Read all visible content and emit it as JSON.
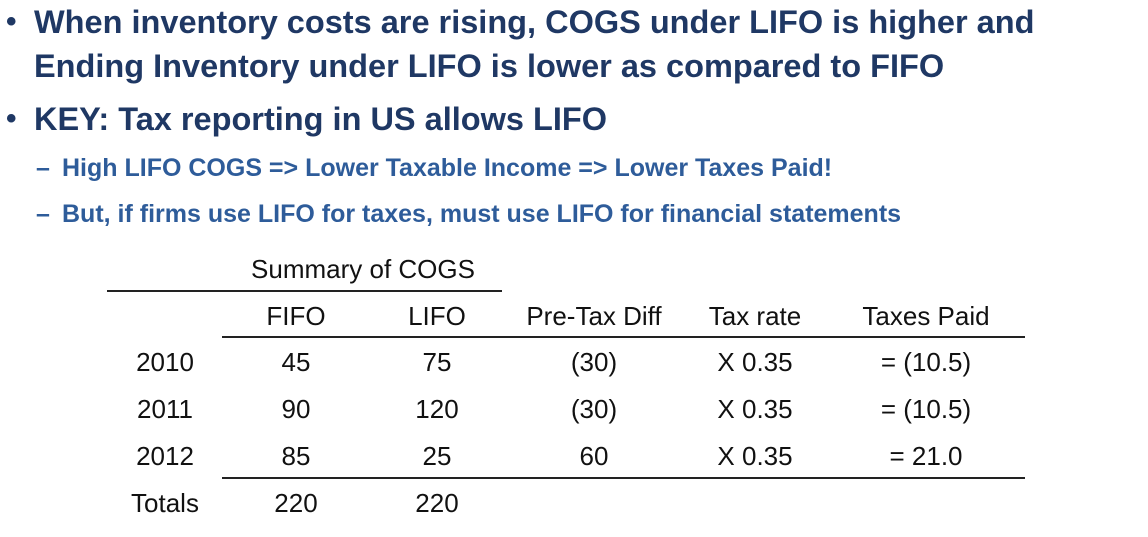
{
  "bullets": [
    {
      "line1": "When inventory costs are rising, COGS under LIFO is higher and",
      "line2": "Ending Inventory under LIFO is lower as compared to FIFO"
    },
    {
      "line1": "KEY: Tax reporting in US allows LIFO"
    }
  ],
  "sub_bullets": [
    "High LIFO COGS => Lower Taxable Income => Lower Taxes Paid!",
    "But, if firms use LIFO for taxes, must use LIFO for financial statements"
  ],
  "bullet_symbol": "•",
  "sub_bullet_symbol": "–",
  "table": {
    "group_header": "Summary of COGS",
    "columns": [
      "FIFO",
      "LIFO",
      "Pre-Tax Diff",
      "Tax rate",
      "Taxes Paid"
    ],
    "rows": [
      {
        "label": "2010",
        "cells": [
          "45",
          "75",
          "(30)",
          "X 0.35",
          "= (10.5)"
        ]
      },
      {
        "label": "2011",
        "cells": [
          "90",
          "120",
          "(30)",
          "X 0.35",
          "= (10.5)"
        ]
      },
      {
        "label": "2012",
        "cells": [
          "85",
          "25",
          "60",
          "X 0.35",
          "= 21.0"
        ]
      }
    ],
    "totals": {
      "label": "Totals",
      "fifo": "220",
      "lifo": "220"
    }
  },
  "colors": {
    "heading": "#1f3864",
    "sub_heading": "#2e5c9a",
    "table_text": "#111111"
  }
}
